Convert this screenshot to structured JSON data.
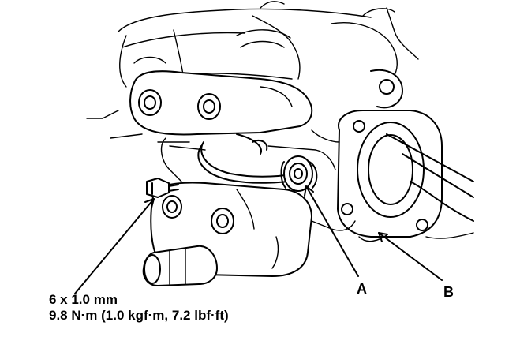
{
  "callouts": {
    "a": "A",
    "b": "B"
  },
  "bolt_spec": {
    "size": "6 x 1.0 mm",
    "torque": "9.8 N·m (1.0 kgf·m, 7.2 lbf·ft)"
  }
}
